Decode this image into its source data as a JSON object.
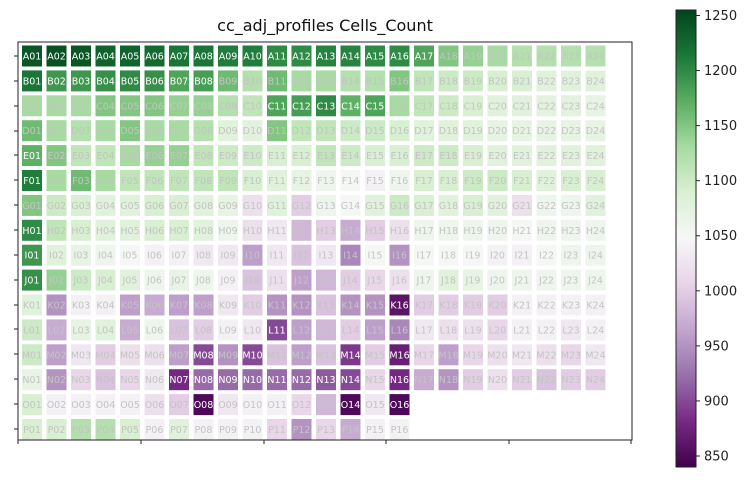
{
  "chart_data": {
    "type": "heatmap",
    "title": "cc_adj_profiles Cells_Count",
    "xlabel": "",
    "ylabel": "",
    "rows": [
      "A",
      "B",
      "C",
      "D",
      "E",
      "F",
      "G",
      "H",
      "I",
      "J",
      "K",
      "L",
      "M",
      "N",
      "O",
      "P"
    ],
    "columns": 24,
    "colormap": "PRGn",
    "vmin": 840,
    "vmax": 1255,
    "colorbar": {
      "ticks": [
        850,
        900,
        950,
        1000,
        1050,
        1100,
        1150,
        1200,
        1250
      ]
    },
    "values": [
      [
        1240,
        1245,
        1240,
        1230,
        1230,
        1225,
        1215,
        1215,
        1210,
        1210,
        1200,
        1200,
        1205,
        1205,
        1200,
        1200,
        1180,
        1150,
        1140,
        1130,
        1120,
        1120,
        1120,
        1120
      ],
      [
        1215,
        1190,
        1190,
        1195,
        1200,
        1195,
        1180,
        1185,
        1160,
        1120,
        1160,
        1130,
        1130,
        1120,
        1120,
        1150,
        1110,
        1100,
        1100,
        1090,
        1090,
        1080,
        1080,
        1080
      ],
      [
        1130,
        1130,
        1130,
        1150,
        1150,
        1150,
        1140,
        1140,
        1120,
        1110,
        1180,
        1185,
        1200,
        1170,
        1180,
        1130,
        1110,
        1100,
        1090,
        1080,
        1080,
        1075,
        1075,
        1070
      ],
      [
        1160,
        1130,
        1120,
        1130,
        1150,
        1130,
        1130,
        1120,
        1080,
        1075,
        1150,
        1110,
        1110,
        1100,
        1100,
        1090,
        1080,
        1080,
        1080,
        1070,
        1070,
        1070,
        1070,
        1070
      ],
      [
        1170,
        1150,
        1110,
        1110,
        1130,
        1140,
        1140,
        1110,
        1100,
        1100,
        1090,
        1090,
        1110,
        1100,
        1090,
        1090,
        1100,
        1100,
        1090,
        1080,
        1080,
        1080,
        1080,
        1080
      ],
      [
        1210,
        1130,
        1160,
        1130,
        1110,
        1110,
        1110,
        1110,
        1110,
        1090,
        1080,
        1070,
        1060,
        1050,
        1040,
        1060,
        1090,
        1090,
        1100,
        1100,
        1090,
        1080,
        1090,
        1090
      ],
      [
        1150,
        1100,
        1090,
        1080,
        1080,
        1090,
        1090,
        1080,
        1070,
        1020,
        1080,
        1000,
        1060,
        1050,
        1080,
        1100,
        1090,
        1080,
        1090,
        1080,
        1020,
        1060,
        1060,
        1080
      ],
      [
        1200,
        1110,
        1090,
        1080,
        1080,
        1090,
        1090,
        1080,
        1060,
        1020,
        1030,
        980,
        1000,
        970,
        1000,
        1020,
        1060,
        1060,
        1060,
        1060,
        1050,
        1060,
        1060,
        1060
      ],
      [
        1190,
        1080,
        1070,
        1060,
        1050,
        1040,
        1040,
        1030,
        1030,
        960,
        1030,
        990,
        1030,
        940,
        1050,
        950,
        1050,
        1050,
        1050,
        1040,
        1040,
        1050,
        1060,
        1060
      ],
      [
        1195,
        1140,
        1100,
        1090,
        1080,
        1060,
        1070,
        1060,
        1040,
        990,
        1020,
        960,
        980,
        1000,
        1010,
        1020,
        1060,
        1080,
        1070,
        1060,
        1060,
        1060,
        1060,
        1060
      ],
      [
        1080,
        950,
        1040,
        1040,
        960,
        970,
        960,
        960,
        1030,
        1000,
        950,
        950,
        990,
        950,
        950,
        860,
        1000,
        1000,
        1000,
        1000,
        1040,
        1040,
        1040,
        1040
      ],
      [
        1100,
        970,
        1070,
        1080,
        970,
        1060,
        990,
        1000,
        1040,
        1030,
        900,
        960,
        980,
        1000,
        960,
        940,
        1030,
        1020,
        1020,
        1010,
        1040,
        1040,
        1030,
        1040
      ],
      [
        1100,
        960,
        1030,
        1000,
        1020,
        1020,
        960,
        900,
        950,
        900,
        990,
        960,
        990,
        890,
        1000,
        870,
        1010,
        960,
        1010,
        1020,
        1030,
        1020,
        1010,
        1030
      ],
      [
        1070,
        950,
        1010,
        990,
        1010,
        1030,
        880,
        920,
        920,
        920,
        920,
        920,
        910,
        900,
        1010,
        880,
        970,
        950,
        1000,
        1020,
        1000,
        990,
        1000,
        1000
      ],
      [
        1090,
        1040,
        1040,
        1040,
        1040,
        1020,
        1000,
        850,
        1030,
        1040,
        1040,
        1010,
        980,
        850,
        1030,
        850,
        null,
        null,
        null,
        null,
        null,
        null,
        null,
        null
      ],
      [
        1090,
        1090,
        1120,
        1120,
        1090,
        1040,
        1080,
        1040,
        1040,
        1040,
        1010,
        950,
        1010,
        970,
        1040,
        1040,
        null,
        null,
        null,
        null,
        null,
        null,
        null,
        null
      ]
    ]
  }
}
